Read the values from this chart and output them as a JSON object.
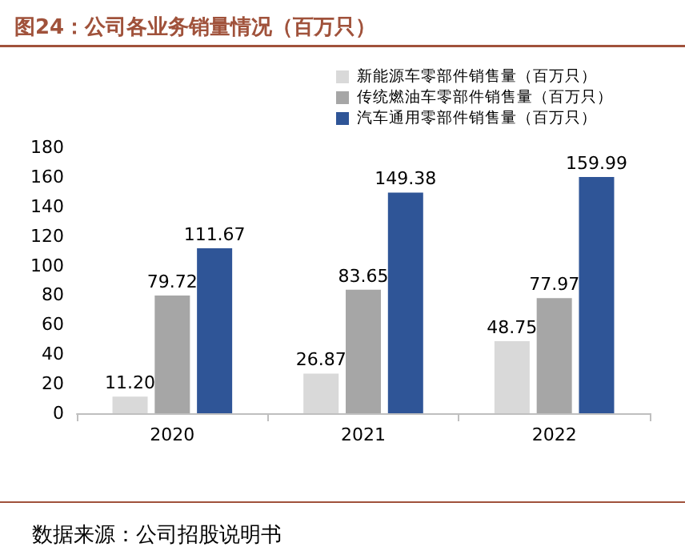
{
  "chart_data": {
    "type": "bar",
    "title": "图24：公司各业务销量情况（百万只）",
    "categories": [
      "2020",
      "2021",
      "2022"
    ],
    "series": [
      {
        "name": "新能源车零部件销售量（百万只）",
        "color": "#d9d9d9",
        "values": [
          11.2,
          26.87,
          48.75
        ],
        "value_labels": [
          "11.20",
          "26.87",
          "48.75"
        ]
      },
      {
        "name": "传统燃油车零部件销售量（百万只）",
        "color": "#a6a6a6",
        "values": [
          79.72,
          83.65,
          77.97
        ],
        "value_labels": [
          "79.72",
          "83.65",
          "77.97"
        ]
      },
      {
        "name": "汽车通用零部件销售量（百万只）",
        "color": "#2f5597",
        "values": [
          111.67,
          149.38,
          159.99
        ],
        "value_labels": [
          "111.67",
          "149.38",
          "159.99"
        ]
      }
    ],
    "ylim": [
      0,
      180
    ],
    "yticks": [
      0,
      20,
      40,
      60,
      80,
      100,
      120,
      140,
      160,
      180
    ],
    "grid": false,
    "legend": "top right",
    "annotations": [
      "数据来源：公司招股说明书"
    ]
  }
}
